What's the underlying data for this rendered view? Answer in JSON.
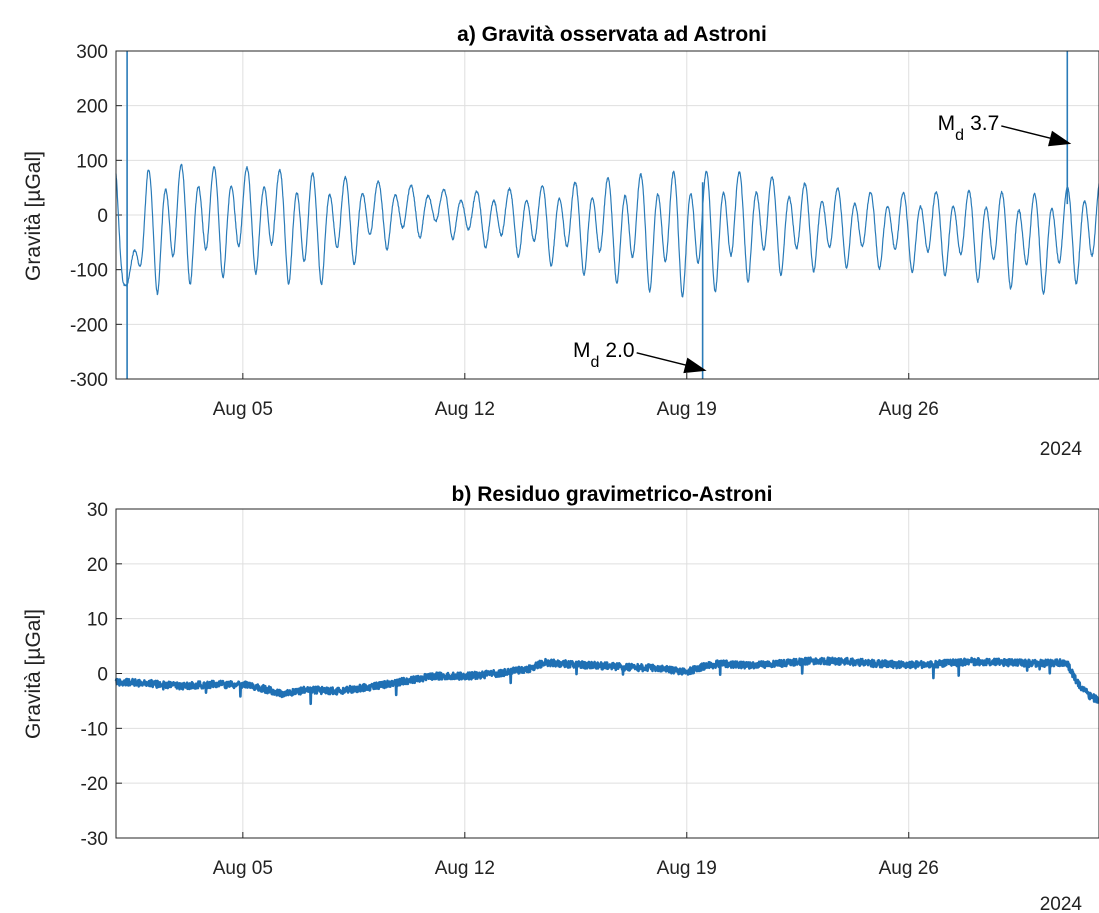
{
  "chart_data": [
    {
      "type": "line",
      "title": "a) Gravità osservata ad Astroni",
      "ylabel": "Gravità [µGal]",
      "xlabel": "",
      "x_start": "Aug 01",
      "x_end": "Sep 01",
      "x_ticks": [
        "Aug 05",
        "Aug 12",
        "Aug 19",
        "Aug 26"
      ],
      "x_tick_days": [
        4,
        11,
        18,
        25
      ],
      "x_secondary_label": "2024",
      "ylim": [
        -300,
        300
      ],
      "y_ticks": [
        "300",
        "200",
        "100",
        "0",
        "-100",
        "-200",
        "-300"
      ],
      "grid": true,
      "color": "#2a7bb8",
      "series_model": {
        "signal": "earth tide, semidiurnal + diurnal, fortnightly modulation",
        "sample_points_day_value": [
          [
            0.0,
            85
          ],
          [
            0.3,
            -130
          ],
          [
            1.0,
            90
          ],
          [
            2.0,
            100
          ],
          [
            3.0,
            95
          ],
          [
            4.0,
            95
          ],
          [
            6.0,
            85
          ],
          [
            9.0,
            60
          ],
          [
            11.0,
            45
          ],
          [
            13.0,
            55
          ],
          [
            15.0,
            70
          ],
          [
            17.0,
            85
          ],
          [
            18.0,
            88
          ],
          [
            20.0,
            85
          ],
          [
            22.0,
            60
          ],
          [
            24.0,
            45
          ],
          [
            27.0,
            50
          ],
          [
            29.0,
            45
          ],
          [
            31.0,
            70
          ]
        ],
        "troughs_day_value": [
          [
            0.3,
            -130
          ],
          [
            1.4,
            -165
          ],
          [
            2.5,
            -140
          ],
          [
            3.4,
            -130
          ],
          [
            5.0,
            -120
          ],
          [
            5.9,
            -165
          ],
          [
            8.0,
            -85
          ],
          [
            10.0,
            -40
          ],
          [
            12.3,
            -80
          ],
          [
            14.3,
            -115
          ],
          [
            16.3,
            -150
          ],
          [
            17.4,
            -165
          ],
          [
            18.3,
            -170
          ],
          [
            20.3,
            -130
          ],
          [
            23.3,
            -105
          ],
          [
            26.4,
            -125
          ],
          [
            28.4,
            -150
          ],
          [
            29.4,
            -160
          ],
          [
            30.3,
            -140
          ]
        ],
        "spikes": [
          {
            "day": 0.35,
            "min": -300,
            "max": 300
          },
          {
            "day": 18.5,
            "min": -300,
            "max": 60
          },
          {
            "day": 30.0,
            "min": 20,
            "max": 300
          }
        ]
      },
      "annotations": [
        {
          "label": "M",
          "subscript": "d",
          "value": "2.0",
          "day": 18.5,
          "value_y": -285
        },
        {
          "label": "M",
          "subscript": "d",
          "value": "3.7",
          "day": 30.0,
          "value_y": 130
        }
      ]
    },
    {
      "type": "line",
      "title": "b) Residuo gravimetrico-Astroni",
      "ylabel": "Gravità [µGal]",
      "xlabel": "",
      "x_start": "Aug 01",
      "x_end": "Sep 01",
      "x_ticks": [
        "Aug 05",
        "Aug 12",
        "Aug 19",
        "Aug 26"
      ],
      "x_tick_days": [
        4,
        11,
        18,
        25
      ],
      "x_secondary_label": "2024",
      "ylim": [
        -30,
        30
      ],
      "y_ticks": [
        "30",
        "20",
        "10",
        "0",
        "-10",
        "-20",
        "-30"
      ],
      "grid": true,
      "color": "#1f70b4",
      "points_day_value": [
        [
          0,
          -1.5
        ],
        [
          1,
          -1.8
        ],
        [
          2,
          -2.3
        ],
        [
          3,
          -2.0
        ],
        [
          4,
          -2.0
        ],
        [
          4.5,
          -2.5
        ],
        [
          5.3,
          -3.8
        ],
        [
          6,
          -3.0
        ],
        [
          7,
          -3.2
        ],
        [
          8,
          -2.5
        ],
        [
          9,
          -1.5
        ],
        [
          10,
          -0.5
        ],
        [
          11,
          -0.5
        ],
        [
          12,
          0
        ],
        [
          13,
          0.8
        ],
        [
          13.5,
          2.0
        ],
        [
          14,
          1.8
        ],
        [
          15,
          1.5
        ],
        [
          16,
          1.2
        ],
        [
          17,
          1.0
        ],
        [
          17.7,
          0.5
        ],
        [
          18,
          0.3
        ],
        [
          18.5,
          1.2
        ],
        [
          19,
          1.8
        ],
        [
          20,
          1.5
        ],
        [
          21,
          1.8
        ],
        [
          22,
          2.3
        ],
        [
          23,
          2.2
        ],
        [
          24,
          1.8
        ],
        [
          25,
          1.5
        ],
        [
          26,
          1.8
        ],
        [
          27,
          2.2
        ],
        [
          28,
          2.0
        ],
        [
          29,
          1.8
        ],
        [
          29.7,
          2.0
        ],
        [
          30,
          1.8
        ],
        [
          30.3,
          -1.5
        ],
        [
          30.7,
          -4.0
        ],
        [
          31,
          -5.0
        ]
      ]
    }
  ]
}
